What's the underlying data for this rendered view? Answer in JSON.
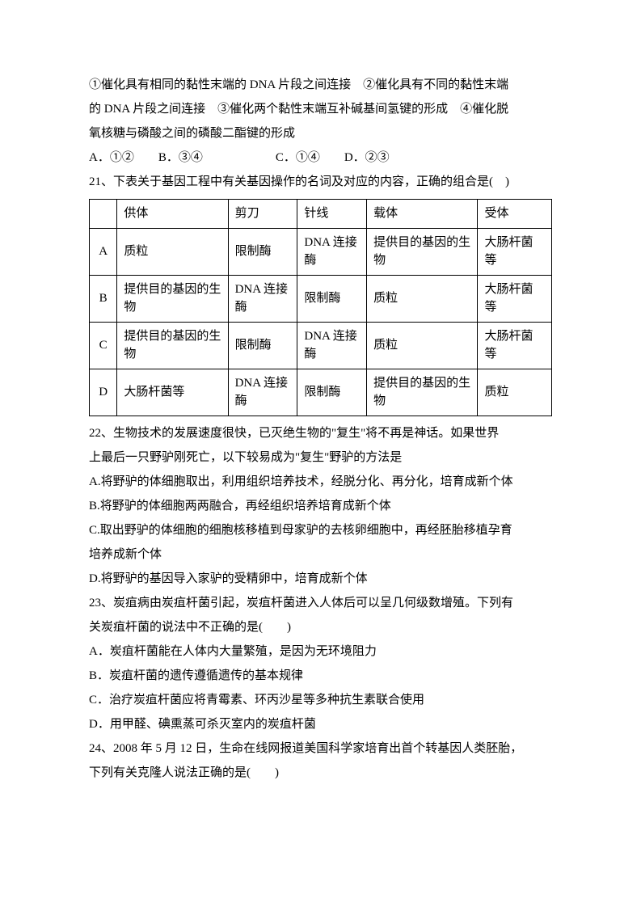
{
  "intro": {
    "l1": "①催化具有相同的黏性末端的 DNA 片段之间连接　②催化具有不同的黏性末端",
    "l2": "的 DNA 片段之间连接　③催化两个黏性末端互补碱基间氢键的形成　④催化脱",
    "l3": "氧核糖与磷酸之间的磷酸二酯键的形成",
    "opts": "A．①②　　B．③④　　　　　　C．①④　　D．②③"
  },
  "q21": {
    "stem": "21、下表关于基因工程中有关基因操作的名词及对应的内容，正确的组合是(　)",
    "headers": [
      "",
      "供体",
      "剪刀",
      "针线",
      "载体",
      "受体"
    ],
    "rows": [
      [
        "A",
        "质粒",
        "限制酶",
        "DNA 连接酶",
        "提供目的基因的生物",
        "大肠杆菌等"
      ],
      [
        "B",
        "提供目的基因的生物",
        "DNA 连接酶",
        "限制酶",
        "质粒",
        "大肠杆菌等"
      ],
      [
        "C",
        "提供目的基因的生物",
        "限制酶",
        "DNA 连接酶",
        "质粒",
        "大肠杆菌等"
      ],
      [
        "D",
        "大肠杆菌等",
        "DNA 连接酶",
        "限制酶",
        "提供目的基因的生物",
        "质粒"
      ]
    ]
  },
  "q22": {
    "l1": "22、生物技术的发展速度很快，已灭绝生物的\"复生\"将不再是神话。如果世界",
    "l2": "上最后一只野驴刚死亡，以下较易成为\"复生\"野驴的方法是",
    "a": "A.将野驴的体细胞取出，利用组织培养技术，经脱分化、再分化，培育成新个体",
    "b": "B.将野驴的体细胞两两融合，再经组织培养培育成新个体",
    "c1": "C.取出野驴的体细胞的细胞核移植到母家驴的去核卵细胞中，再经胚胎移植孕育",
    "c2": "培养成新个体",
    "d": "D.将野驴的基因导入家驴的受精卵中，培育成新个体"
  },
  "q23": {
    "l1": "23、炭疽病由炭疽杆菌引起，炭疽杆菌进入人体后可以呈几何级数增殖。下列有",
    "l2": "关炭疽杆菌的说法中不正确的是(　　)",
    "a": "A．炭疽杆菌能在人体内大量繁殖，是因为无环境阻力",
    "b": "B．炭疽杆菌的遗传遵循遗传的基本规律",
    "c": "C．治疗炭疽杆菌应将青霉素、环丙沙星等多种抗生素联合使用",
    "d": "D．用甲醛、碘熏蒸可杀灭室内的炭疽杆菌"
  },
  "q24": {
    "l1": "24、2008 年 5 月 12 日，生命在线网报道美国科学家培育出首个转基因人类胚胎，",
    "l2": "下列有关克隆人说法正确的是(　　)"
  }
}
